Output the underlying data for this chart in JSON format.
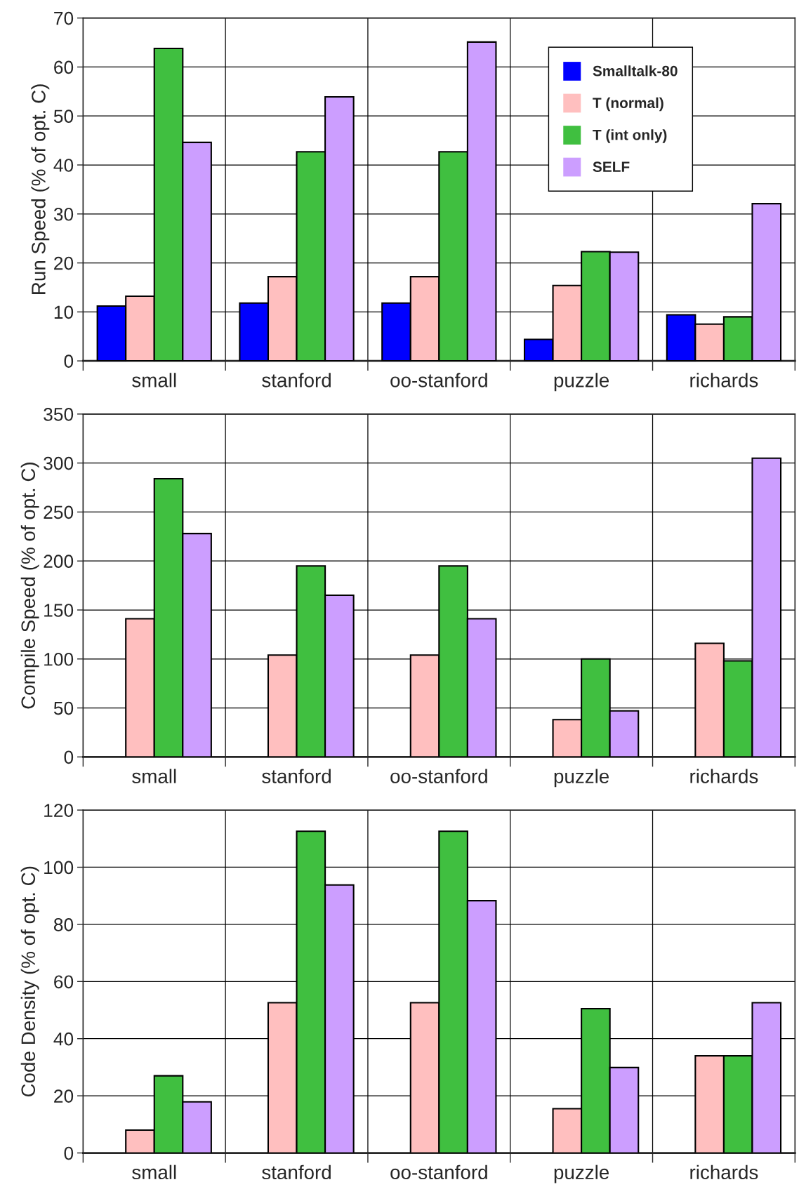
{
  "chart_data": [
    {
      "type": "bar",
      "ylabel": "Run Speed (% of opt. C)",
      "categories": [
        "small",
        "stanford",
        "oo-stanford",
        "puzzle",
        "richards"
      ],
      "ylim": [
        0,
        70
      ],
      "yticks": [
        0,
        10,
        20,
        30,
        40,
        50,
        60,
        70
      ],
      "grid": true,
      "legend": "top right",
      "series": [
        {
          "name": "Smalltalk-80",
          "color": "#0000ff",
          "values": [
            11.2,
            11.8,
            11.8,
            4.4,
            9.4
          ]
        },
        {
          "name": "T (normal)",
          "color": "#ffbfbf",
          "values": [
            13.2,
            17.2,
            17.2,
            15.4,
            7.5
          ]
        },
        {
          "name": "T (int only)",
          "color": "#40bf40",
          "values": [
            63.8,
            42.7,
            42.7,
            22.3,
            9.0
          ]
        },
        {
          "name": "SELF",
          "color": "#cc9eff",
          "values": [
            44.6,
            53.9,
            65.1,
            22.2,
            32.1
          ]
        }
      ]
    },
    {
      "type": "bar",
      "ylabel": "Compile Speed (% of opt. C)",
      "categories": [
        "small",
        "stanford",
        "oo-stanford",
        "puzzle",
        "richards"
      ],
      "ylim": [
        0,
        350
      ],
      "yticks": [
        0,
        50,
        100,
        150,
        200,
        250,
        300,
        350
      ],
      "grid": true,
      "series": [
        {
          "color": "#0000ff",
          "values": [
            null,
            null,
            null,
            null,
            null
          ]
        },
        {
          "color": "#ffbfbf",
          "values": [
            141,
            104,
            104,
            38,
            116
          ]
        },
        {
          "color": "#40bf40",
          "values": [
            284,
            195,
            195,
            100,
            98
          ]
        },
        {
          "color": "#cc9eff",
          "values": [
            228,
            165,
            141,
            47,
            305
          ]
        }
      ]
    },
    {
      "type": "bar",
      "ylabel": "Code Density (% of opt. C)",
      "categories": [
        "small",
        "stanford",
        "oo-stanford",
        "puzzle",
        "richards"
      ],
      "ylim": [
        0,
        120
      ],
      "yticks": [
        0,
        20,
        40,
        60,
        80,
        100,
        120
      ],
      "grid": true,
      "series": [
        {
          "color": "#0000ff",
          "values": [
            null,
            null,
            null,
            null,
            null
          ]
        },
        {
          "color": "#ffbfbf",
          "values": [
            8.0,
            52.6,
            52.6,
            15.5,
            34
          ]
        },
        {
          "color": "#40bf40",
          "values": [
            27,
            112.6,
            112.6,
            50.5,
            34
          ]
        },
        {
          "color": "#cc9eff",
          "values": [
            17.9,
            93.8,
            88.3,
            29.9,
            52.6
          ]
        }
      ]
    }
  ]
}
